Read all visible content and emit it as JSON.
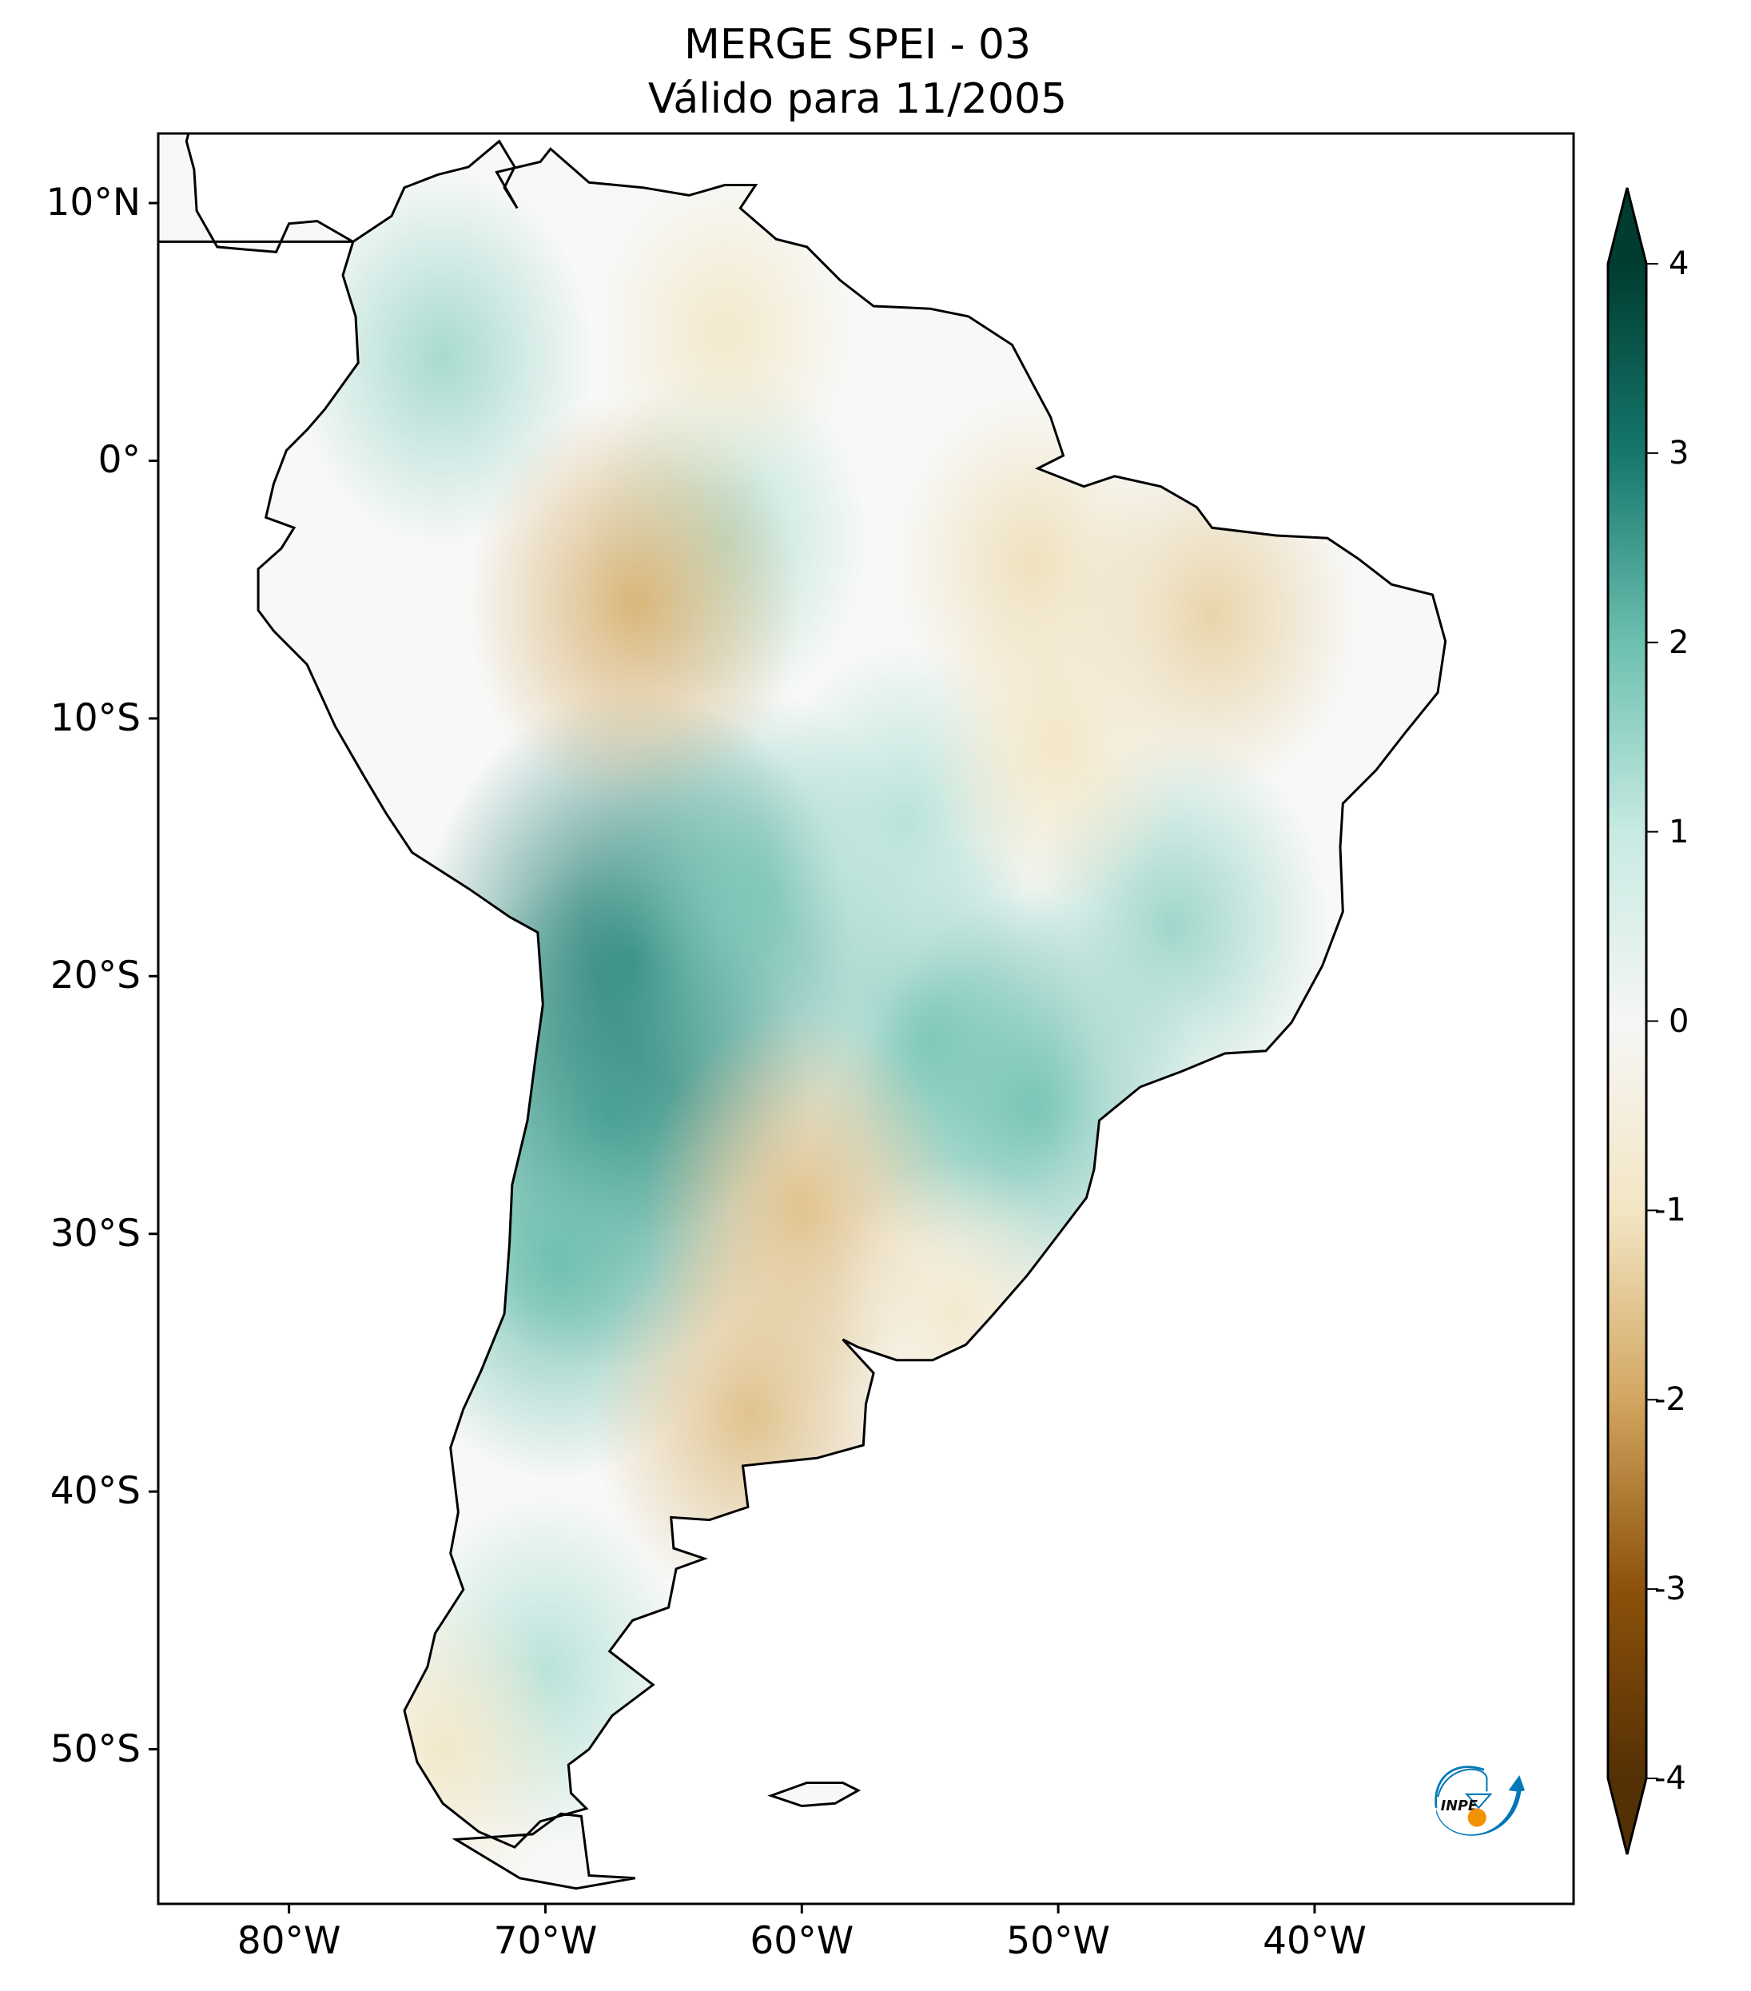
{
  "title": {
    "line1": "MERGE   SPEI - 03",
    "line2": "Válido para 11/2005"
  },
  "chart_data": {
    "type": "heatmap",
    "variable": "SPEI - 03",
    "title": "MERGE   SPEI - 03\nVálido para 11/2005",
    "xlim": [
      -85.1,
      -29.9
    ],
    "ylim": [
      -56,
      12.7
    ],
    "x_ticks": [
      {
        "value": -80,
        "label": "80°W"
      },
      {
        "value": -70,
        "label": "70°W"
      },
      {
        "value": -60,
        "label": "60°W"
      },
      {
        "value": -50,
        "label": "50°W"
      },
      {
        "value": -40,
        "label": "40°W"
      }
    ],
    "y_ticks": [
      {
        "value": 10,
        "label": "10°N"
      },
      {
        "value": 0,
        "label": "0°"
      },
      {
        "value": -10,
        "label": "10°S"
      },
      {
        "value": -20,
        "label": "20°S"
      },
      {
        "value": -30,
        "label": "30°S"
      },
      {
        "value": -40,
        "label": "40°S"
      },
      {
        "value": -50,
        "label": "50°S"
      }
    ],
    "colorbar": {
      "range": [
        -4,
        4
      ],
      "extend": "both",
      "orientation": "vertical",
      "placement": "right",
      "colormap": "BrBG",
      "ticks": [
        {
          "value": 4,
          "label": "4"
        },
        {
          "value": 3,
          "label": "3"
        },
        {
          "value": 2,
          "label": "2"
        },
        {
          "value": 1,
          "label": "1"
        },
        {
          "value": 0,
          "label": "0"
        },
        {
          "value": -1,
          "label": "-1"
        },
        {
          "value": -2,
          "label": "-2"
        },
        {
          "value": -3,
          "label": "-3"
        },
        {
          "value": -4,
          "label": "-4"
        }
      ],
      "colors": {
        "-4": "#543005",
        "-3": "#8c510a",
        "-2": "#d2a660",
        "-1": "#f3e6c4",
        "0": "#f6f6f6",
        "1": "#c7eae2",
        "2": "#6cc0b0",
        "3": "#16776c",
        "4": "#003c30"
      }
    },
    "anomalies": [
      {
        "lon": -66.5,
        "lat": -19.5,
        "value": 3.0
      },
      {
        "lon": -67.5,
        "lat": -25.5,
        "value": 2.6
      },
      {
        "lon": -69.5,
        "lat": -31,
        "value": 2.0
      },
      {
        "lon": -62,
        "lat": -17,
        "value": 1.8
      },
      {
        "lon": -55,
        "lat": -22.5,
        "value": 1.8
      },
      {
        "lon": -51,
        "lat": -25,
        "value": 1.9
      },
      {
        "lon": -45.5,
        "lat": -18,
        "value": 1.5
      },
      {
        "lon": -74,
        "lat": 4,
        "value": 1.4
      },
      {
        "lon": -63,
        "lat": -3,
        "value": 1.2
      },
      {
        "lon": -56,
        "lat": -14,
        "value": 1.2
      },
      {
        "lon": -70,
        "lat": -47,
        "value": 1.2
      },
      {
        "lon": -66.5,
        "lat": -5.5,
        "value": -1.8
      },
      {
        "lon": -60,
        "lat": -29,
        "value": -1.6
      },
      {
        "lon": -62,
        "lat": -37,
        "value": -1.6
      },
      {
        "lon": -44,
        "lat": -6,
        "value": -1.3
      },
      {
        "lon": -51,
        "lat": -4,
        "value": -1.1
      },
      {
        "lon": -50,
        "lat": -11,
        "value": -1.0
      },
      {
        "lon": -63,
        "lat": 5,
        "value": -0.9
      },
      {
        "lon": -74,
        "lat": -50,
        "value": -0.9
      },
      {
        "lon": -54,
        "lat": -33,
        "value": -0.8
      }
    ]
  },
  "logo": {
    "text": "INPE",
    "colors": {
      "blue": "#0077b8",
      "orange": "#f39200"
    }
  }
}
